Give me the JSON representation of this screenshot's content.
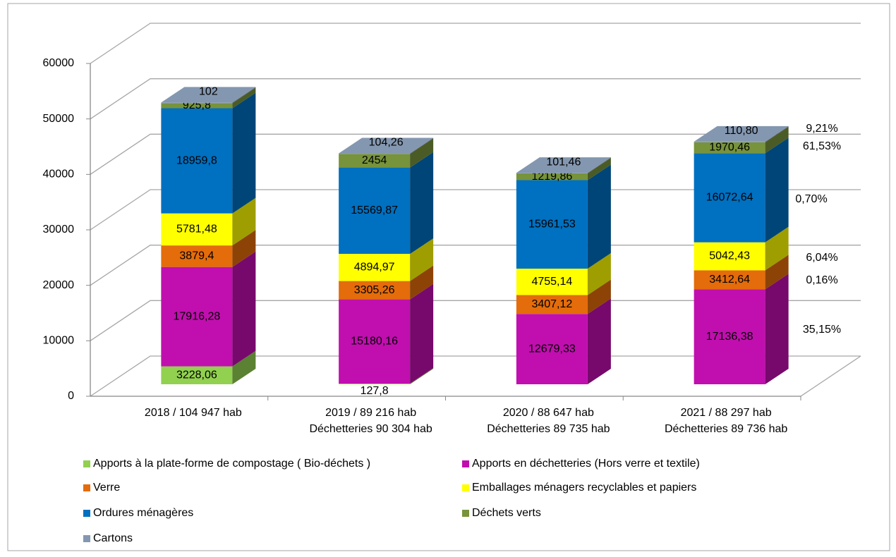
{
  "chart_data": {
    "type": "bar3d_stacked",
    "categories": [
      [
        "2018 / 104 947 hab"
      ],
      [
        "2019 / 89 216 hab",
        "Déchetteries 90 304 hab"
      ],
      [
        "2020 / 88 647 hab",
        "Déchetteries 89 735 hab"
      ],
      [
        "2021 / 88 297 hab",
        "Déchetteries 89 736 hab"
      ]
    ],
    "series": [
      {
        "name": "Apports à la plate-forme de compostage ( Bio-déchets )",
        "color": "#92d050",
        "values": [
          3228.06,
          127.8,
          null,
          null
        ],
        "value_labels": [
          "3228,06",
          "127,8",
          null,
          null
        ]
      },
      {
        "name": "Apports en déchetteries (Hors verre et textile)",
        "color": "#c00fae",
        "values": [
          17916.28,
          15180.16,
          12679.33,
          17136.38
        ],
        "value_labels": [
          "17916,28",
          "15180,16",
          "12679,33",
          "17136,38"
        ]
      },
      {
        "name": "Verre",
        "color": "#e46c0a",
        "values": [
          3879.4,
          3305.26,
          3407.12,
          3412.64
        ],
        "value_labels": [
          "3879,4",
          "3305,26",
          "3407,12",
          "3412,64"
        ]
      },
      {
        "name": "Emballages ménagers recyclables et papiers",
        "color": "#ffff00",
        "values": [
          5781.48,
          4894.97,
          4755.14,
          5042.43
        ],
        "value_labels": [
          "5781,48",
          "4894,97",
          "4755,14",
          "5042,43"
        ]
      },
      {
        "name": "Ordures ménagères",
        "color": "#0070c0",
        "values": [
          18959.8,
          15569.87,
          15961.53,
          16072.64
        ],
        "value_labels": [
          "18959,8",
          "15569,87",
          "15961,53",
          "16072,64"
        ]
      },
      {
        "name": "Déchets verts",
        "color": "#77933c",
        "values": [
          925.8,
          2454,
          1219.86,
          1970.46
        ],
        "value_labels": [
          "925,8",
          "2454",
          "1219,86",
          "1970,46"
        ]
      },
      {
        "name": "Cartons",
        "color": "#8497b0",
        "values": [
          102,
          104.26,
          101.46,
          110.8
        ],
        "value_labels": [
          "102",
          "104,26",
          "101,46",
          "110,80"
        ]
      }
    ],
    "annotations": [
      "9,21%",
      "61,53%",
      "0,70%",
      "6,04%",
      "0,16%",
      "35,15%"
    ],
    "ylim": [
      0,
      60000
    ],
    "yticks": [
      0,
      10000,
      20000,
      30000,
      40000,
      50000,
      60000
    ],
    "grid": true
  }
}
